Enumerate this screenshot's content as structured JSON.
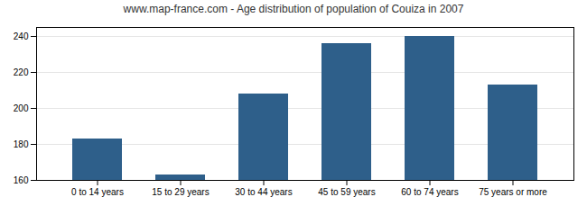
{
  "chart_data": {
    "type": "bar",
    "title": "www.map-france.com - Age distribution of population of Couiza in 2007",
    "categories": [
      "0 to 14 years",
      "15 to 29 years",
      "30 to 44 years",
      "45 to 59 years",
      "60 to 74 years",
      "75 years or more"
    ],
    "values": [
      183,
      163,
      208,
      236,
      240,
      213
    ],
    "color": "#2e5f8a",
    "ylim": [
      160,
      245
    ],
    "yticks": [
      160,
      180,
      200,
      220,
      240
    ],
    "grid": true
  }
}
